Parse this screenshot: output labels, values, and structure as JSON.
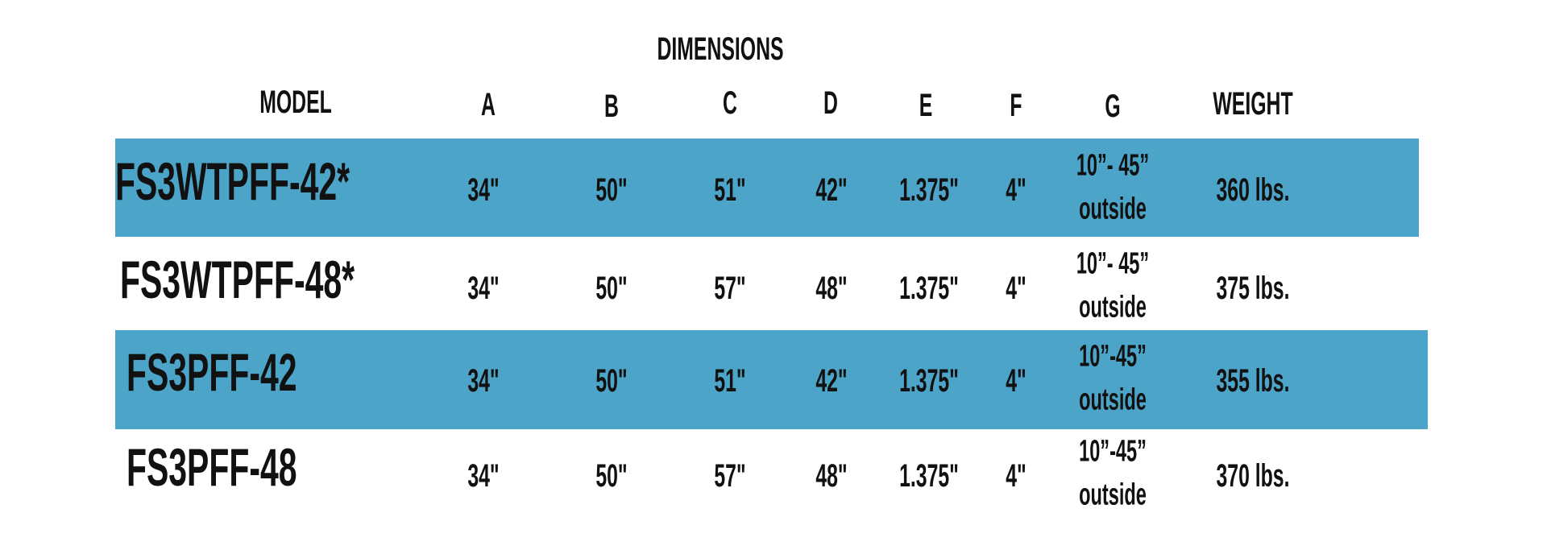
{
  "colors": {
    "band": "#4ca4c8",
    "text": "#111111"
  },
  "table": {
    "group_header": "DIMENSIONS",
    "columns": [
      "MODEL",
      "A",
      "B",
      "C",
      "D",
      "E",
      "F",
      "G",
      "WEIGHT"
    ],
    "rows": [
      {
        "model": "FS3WTPFF-42*",
        "a": "34\"",
        "b": "50\"",
        "c": "51\"",
        "d": "42\"",
        "e": "1.375\"",
        "f": "4\"",
        "g1": "10”- 45”",
        "g2": "outside",
        "weight": "360 lbs.",
        "highlighted": true
      },
      {
        "model": "FS3WTPFF-48*",
        "a": "34\"",
        "b": "50\"",
        "c": "57\"",
        "d": "48\"",
        "e": "1.375\"",
        "f": "4\"",
        "g1": "10”- 45”",
        "g2": "outside",
        "weight": "375 lbs.",
        "highlighted": false
      },
      {
        "model": "FS3PFF-42",
        "a": "34\"",
        "b": "50\"",
        "c": "51\"",
        "d": "42\"",
        "e": "1.375\"",
        "f": "4\"",
        "g1": "10”-45”",
        "g2": "outside",
        "weight": "355 lbs.",
        "highlighted": true
      },
      {
        "model": "FS3PFF-48",
        "a": "34\"",
        "b": "50\"",
        "c": "57\"",
        "d": "48\"",
        "e": "1.375\"",
        "f": "4\"",
        "g1": "10”-45”",
        "g2": "outside",
        "weight": "370 lbs.",
        "highlighted": false
      }
    ]
  }
}
